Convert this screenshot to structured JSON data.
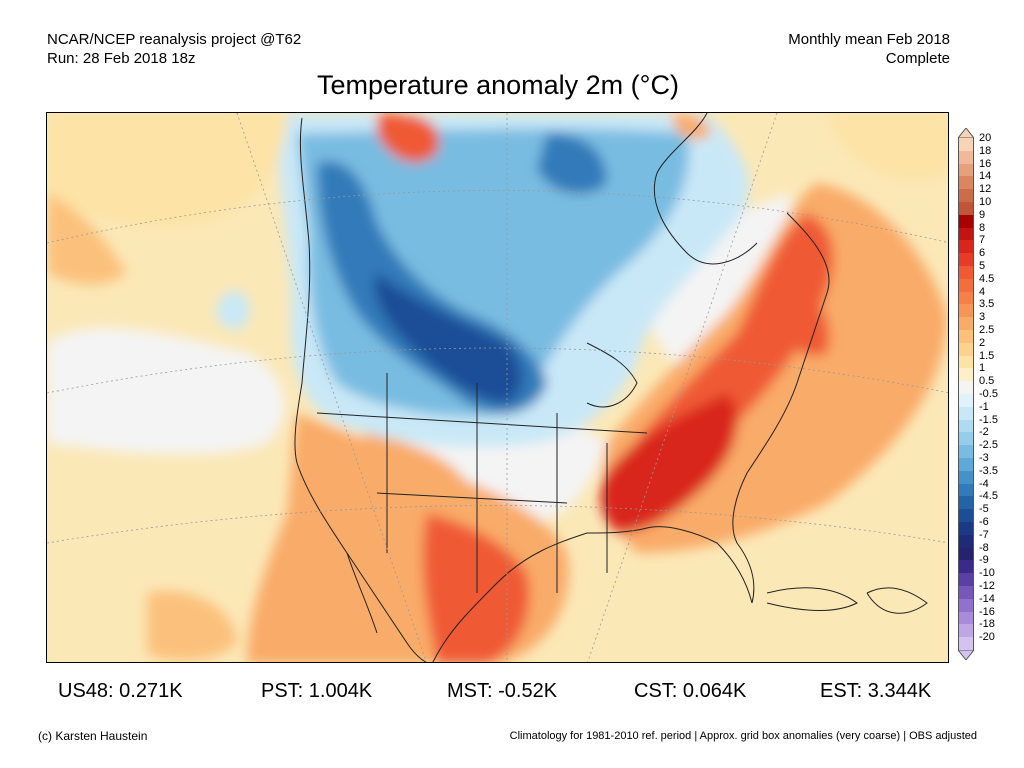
{
  "header": {
    "left_line1": "NCAR/NCEP reanalysis project @T62",
    "left_line2": "Run: 28 Feb 2018 18z",
    "right_line1": "Monthly mean Feb 2018",
    "right_line2": "Complete"
  },
  "title": "Temperature anomaly 2m (°C)",
  "legend": {
    "labels": [
      "20",
      "18",
      "16",
      "14",
      "12",
      "10",
      "9",
      "8",
      "7",
      "6",
      "5",
      "4.5",
      "4",
      "3.5",
      "3",
      "2.5",
      "2",
      "1.5",
      "1",
      "0.5",
      "-0.5",
      "-1",
      "-1.5",
      "-2",
      "-2.5",
      "-3",
      "-3.5",
      "-4",
      "-4.5",
      "-5",
      "-6",
      "-7",
      "-8",
      "-9",
      "-10",
      "-12",
      "-14",
      "-16",
      "-18",
      "-20"
    ],
    "colors": [
      "#f7d3b8",
      "#efb99a",
      "#e6a07c",
      "#d98661",
      "#cc6d4a",
      "#c05538",
      "#a80000",
      "#c41313",
      "#d9251d",
      "#e73a27",
      "#ef5a34",
      "#f26e3c",
      "#f58048",
      "#f79558",
      "#f9ab69",
      "#fbc17b",
      "#fcd38e",
      "#fde3a5",
      "#fdf0c8",
      "#f4f4f4",
      "#e1f2fb",
      "#c9e8f7",
      "#afdbf1",
      "#95cdea",
      "#79bce1",
      "#5ea9d7",
      "#4592c9",
      "#327ab9",
      "#2563a8",
      "#1c4d97",
      "#1a3a86",
      "#1d2b78",
      "#27226f",
      "#3b2a8a",
      "#5a3fa5",
      "#7658bb",
      "#8f72cc",
      "#a88cdb",
      "#bfa7e6",
      "#d5c3ef"
    ]
  },
  "stats": [
    {
      "region": "US48",
      "value": "0.271K",
      "text": "US48: 0.271K"
    },
    {
      "region": "PST",
      "value": "1.004K",
      "text": "PST: 1.004K"
    },
    {
      "region": "MST",
      "value": "-0.52K",
      "text": "MST: -0.52K"
    },
    {
      "region": "CST",
      "value": "0.064K",
      "text": "CST: 0.064K"
    },
    {
      "region": "EST",
      "value": "3.344K",
      "text": "EST: 3.344K"
    }
  ],
  "footer": {
    "credit": "(c) Karsten Haustein",
    "note": "Climatology for 1981-2010 ref. period | Approx. grid box anomalies (very coarse) | OBS adjusted"
  },
  "map_colors": {
    "warm_base": "#fbe8b7",
    "neutral": "#f4f4f4",
    "warm_light": "#fde3a5",
    "warm_mid": "#f9ab69",
    "warm_strong": "#ef5a34",
    "warm_peak": "#d9251d",
    "cold_light": "#c9e8f7",
    "cold_mid": "#79bce1",
    "cold_strong": "#327ab9",
    "cold_peak": "#1c4d97"
  }
}
